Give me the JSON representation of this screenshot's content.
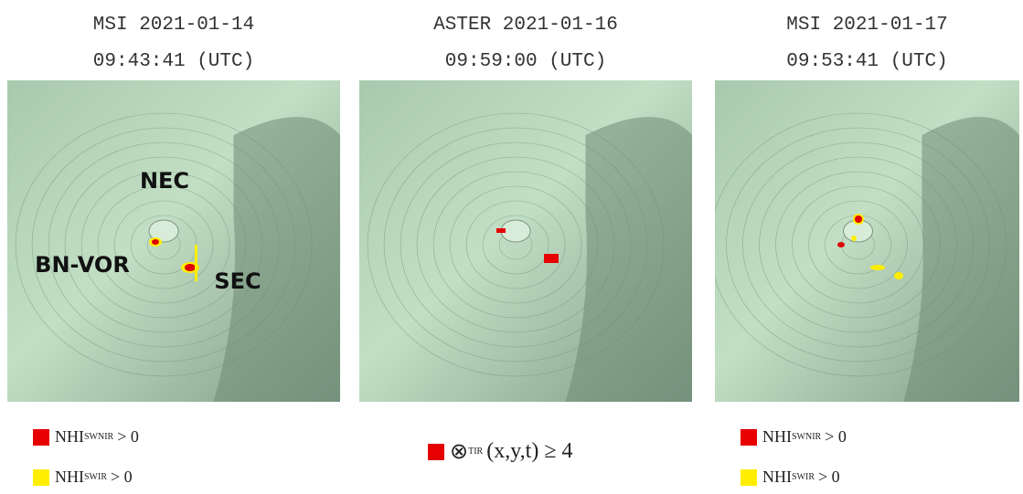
{
  "panels": [
    {
      "title_lines": [
        "MSI 2021-01-14",
        "09:43:41 (UTC)"
      ],
      "labels": [
        "NEC",
        "BN-VOR",
        "SEC"
      ],
      "legend": [
        {
          "base": "NHI",
          "sub": "SWNIR",
          "rest": "> 0"
        },
        {
          "base": "NHI",
          "sub": "SWIR",
          "rest": "> 0"
        }
      ]
    },
    {
      "title_lines": [
        "ASTER 2021-01-16",
        "09:59:00 (UTC)"
      ],
      "labels": [],
      "legend": [
        {
          "base": "⊗",
          "sub": "TIR",
          "rest": "(x,y,t) ≥ 4"
        }
      ]
    },
    {
      "title_lines": [
        "MSI 2021-01-17",
        "09:53:41 (UTC)"
      ],
      "labels": [],
      "legend": [
        {
          "base": "NHI",
          "sub": "SWNIR",
          "rest": "> 0"
        },
        {
          "base": "NHI",
          "sub": "SWIR",
          "rest": "> 0"
        }
      ]
    }
  ]
}
